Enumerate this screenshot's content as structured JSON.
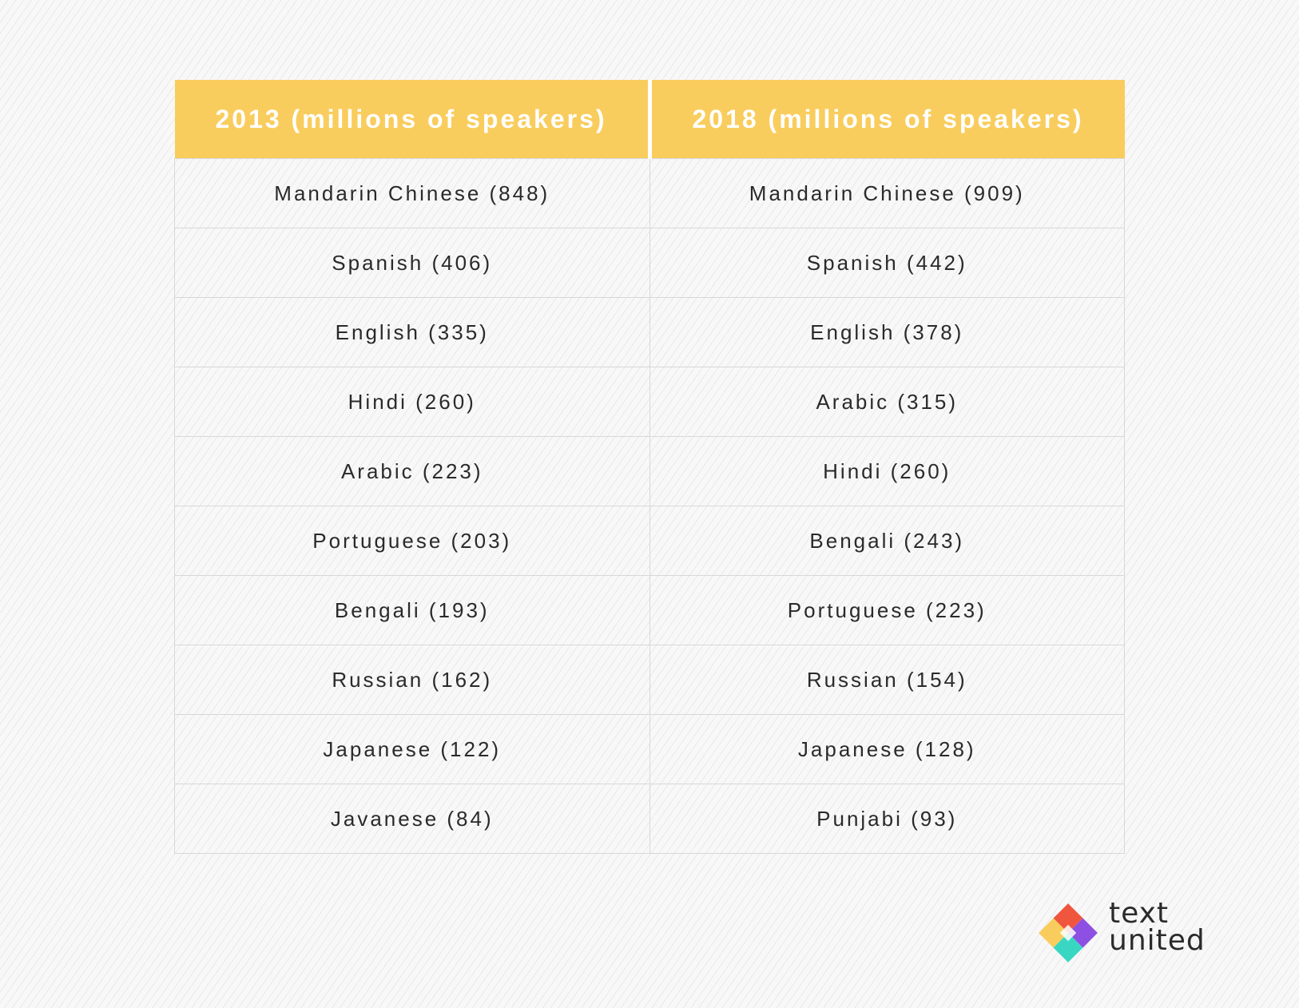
{
  "table": {
    "headers": [
      "2013 (millions of speakers)",
      "2018 (millions of speakers)"
    ],
    "rows": [
      [
        "Mandarin Chinese (848)",
        "Mandarin Chinese (909)"
      ],
      [
        "Spanish (406)",
        "Spanish (442)"
      ],
      [
        "English (335)",
        "English (378)"
      ],
      [
        "Hindi (260)",
        "Arabic (315)"
      ],
      [
        "Arabic (223)",
        "Hindi (260)"
      ],
      [
        "Portuguese (203)",
        "Bengali (243)"
      ],
      [
        "Bengali (193)",
        "Portuguese (223)"
      ],
      [
        "Russian (162)",
        "Russian (154)"
      ],
      [
        "Japanese (122)",
        "Japanese (128)"
      ],
      [
        "Javanese (84)",
        "Punjabi (93)"
      ]
    ]
  },
  "logo": {
    "line1": "text",
    "line2": "united"
  },
  "colors": {
    "header_background": "#f9cd5d",
    "header_text": "#ffffff",
    "cell_text": "#2a2a2a",
    "grid_line": "#d8d8d8",
    "logo_red": "#f0563e",
    "logo_purple": "#8e4fe3",
    "logo_yellow": "#f9cd5d",
    "logo_teal": "#39d7c2"
  }
}
